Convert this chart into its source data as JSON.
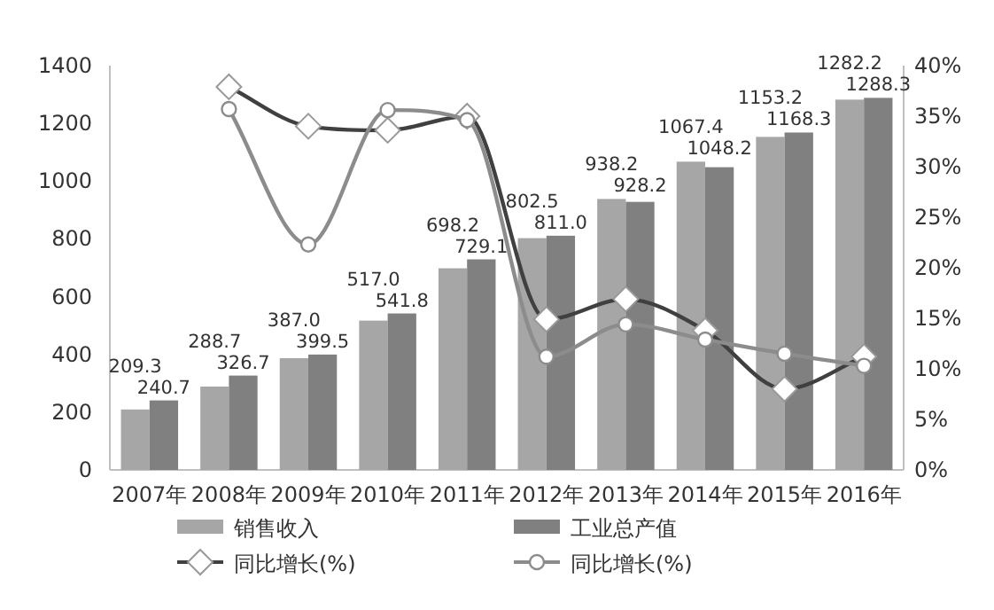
{
  "chart_data": {
    "type": "bar",
    "categories": [
      "2007年",
      "2008年",
      "2009年",
      "2010年",
      "2011年",
      "2012年",
      "2013年",
      "2014年",
      "2015年",
      "2016年"
    ],
    "series": [
      {
        "name": "销售收入",
        "color": "#a6a6a6",
        "values": [
          209.3,
          288.7,
          387.0,
          517.0,
          698.2,
          802.5,
          938.2,
          1067.4,
          1153.2,
          1282.2
        ],
        "value_labels": [
          "209.3",
          "288.7",
          "387.0",
          "517.0",
          "698.2",
          "802.5",
          "938.2",
          "1067.4",
          "1153.2",
          "1282.2"
        ]
      },
      {
        "name": "工业总产值",
        "color": "#808080",
        "values": [
          240.7,
          326.7,
          399.5,
          541.8,
          729.1,
          811.0,
          928.2,
          1048.2,
          1168.3,
          1288.3
        ],
        "value_labels": [
          "240.7",
          "326.7",
          "399.5",
          "541.8",
          "729.1",
          "811.0",
          "928.2",
          "1048.2",
          "1168.3",
          "1288.3"
        ]
      },
      {
        "name": "同比增长(%)",
        "type": "line",
        "axis": "y2",
        "marker": "diamond",
        "color": "#404040",
        "values": [
          null,
          37.9,
          34.0,
          33.6,
          35.0,
          14.9,
          16.9,
          13.8,
          8.0,
          11.2
        ]
      },
      {
        "name": "同比增长(%)",
        "type": "line",
        "axis": "y2",
        "marker": "circle",
        "color": "#8c8c8c",
        "values": [
          null,
          35.7,
          22.3,
          35.6,
          34.6,
          11.2,
          14.4,
          12.9,
          11.5,
          10.3
        ]
      }
    ],
    "ylim": [
      0,
      1400
    ],
    "yticks": [
      0,
      200,
      400,
      600,
      800,
      1000,
      1200,
      1400
    ],
    "y2lim": [
      0,
      40
    ],
    "y2ticks": [
      {
        "value": 0,
        "label": "0%"
      },
      {
        "value": 5,
        "label": "5%"
      },
      {
        "value": 10,
        "label": "10%"
      },
      {
        "value": 15,
        "label": "15%"
      },
      {
        "value": 20,
        "label": "20%"
      },
      {
        "value": 25,
        "label": "25%"
      },
      {
        "value": 30,
        "label": "30%"
      },
      {
        "value": 35,
        "label": "35%"
      },
      {
        "value": 40,
        "label": "40%"
      }
    ],
    "legend": "bottom"
  }
}
